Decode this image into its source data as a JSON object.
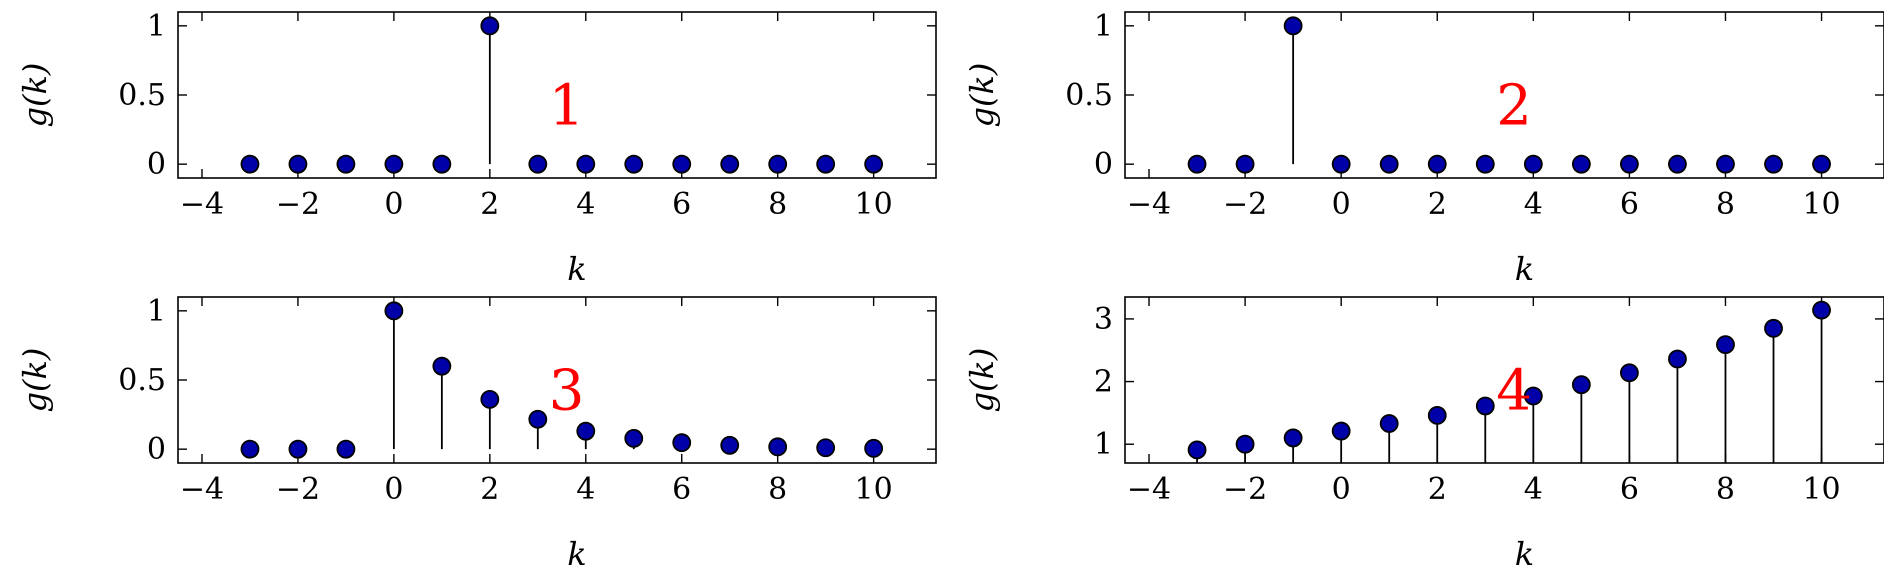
{
  "colors": {
    "marker_fill": "#0000a8",
    "stem": "#000000",
    "tag": "#ff0000"
  },
  "chart_data": [
    {
      "type": "stem",
      "panel_tag": "1",
      "xlabel": "k",
      "ylabel": "g(k)",
      "xlim": [
        -4.5,
        11.3
      ],
      "ylim": [
        -0.1,
        1.1
      ],
      "xticks": [
        -4,
        -2,
        0,
        2,
        4,
        6,
        8,
        10
      ],
      "xtick_labels": [
        "−4",
        "−2",
        "0",
        "2",
        "4",
        "6",
        "8",
        "10"
      ],
      "yticks": [
        0,
        0.5,
        1
      ],
      "ytick_labels": [
        "0",
        "0.5",
        "1"
      ],
      "x": [
        -3,
        -2,
        -1,
        0,
        1,
        2,
        3,
        4,
        5,
        6,
        7,
        8,
        9,
        10
      ],
      "y": [
        0,
        0,
        0,
        0,
        0,
        1,
        0,
        0,
        0,
        0,
        0,
        0,
        0,
        0
      ]
    },
    {
      "type": "stem",
      "panel_tag": "2",
      "xlabel": "k",
      "ylabel": "g(k)",
      "xlim": [
        -4.5,
        11.3
      ],
      "ylim": [
        -0.1,
        1.1
      ],
      "xticks": [
        -4,
        -2,
        0,
        2,
        4,
        6,
        8,
        10
      ],
      "xtick_labels": [
        "−4",
        "−2",
        "0",
        "2",
        "4",
        "6",
        "8",
        "10"
      ],
      "yticks": [
        0,
        0.5,
        1
      ],
      "ytick_labels": [
        "0",
        "0.5",
        "1"
      ],
      "x": [
        -3,
        -2,
        -1,
        0,
        1,
        2,
        3,
        4,
        5,
        6,
        7,
        8,
        9,
        10
      ],
      "y": [
        0,
        0,
        1,
        0,
        0,
        0,
        0,
        0,
        0,
        0,
        0,
        0,
        0,
        0
      ]
    },
    {
      "type": "stem",
      "panel_tag": "3",
      "xlabel": "k",
      "ylabel": "g(k)",
      "xlim": [
        -4.5,
        11.3
      ],
      "ylim": [
        -0.1,
        1.1
      ],
      "xticks": [
        -4,
        -2,
        0,
        2,
        4,
        6,
        8,
        10
      ],
      "xtick_labels": [
        "−4",
        "−2",
        "0",
        "2",
        "4",
        "6",
        "8",
        "10"
      ],
      "yticks": [
        0,
        0.5,
        1
      ],
      "ytick_labels": [
        "0",
        "0.5",
        "1"
      ],
      "x": [
        -3,
        -2,
        -1,
        0,
        1,
        2,
        3,
        4,
        5,
        6,
        7,
        8,
        9,
        10
      ],
      "y": [
        0,
        0,
        0,
        1,
        0.6,
        0.36,
        0.216,
        0.13,
        0.078,
        0.047,
        0.028,
        0.017,
        0.01,
        0.006
      ]
    },
    {
      "type": "stem",
      "panel_tag": "4",
      "xlabel": "k",
      "ylabel": "g(k)",
      "xlim": [
        -4.5,
        11.3
      ],
      "ylim": [
        0.7,
        3.35
      ],
      "xticks": [
        -4,
        -2,
        0,
        2,
        4,
        6,
        8,
        10
      ],
      "xtick_labels": [
        "−4",
        "−2",
        "0",
        "2",
        "4",
        "6",
        "8",
        "10"
      ],
      "yticks": [
        1,
        2,
        3
      ],
      "ytick_labels": [
        "1",
        "2",
        "3"
      ],
      "x": [
        -3,
        -2,
        -1,
        0,
        1,
        2,
        3,
        4,
        5,
        6,
        7,
        8,
        9,
        10
      ],
      "y": [
        0.91,
        1.0,
        1.1,
        1.21,
        1.33,
        1.46,
        1.61,
        1.77,
        1.95,
        2.14,
        2.36,
        2.59,
        2.85,
        3.14
      ]
    }
  ]
}
